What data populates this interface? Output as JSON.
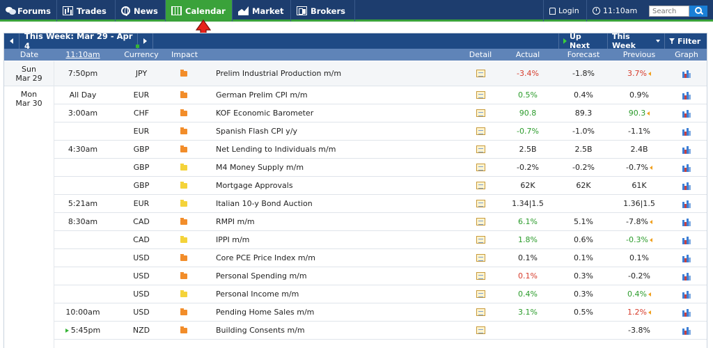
{
  "nav": {
    "items": [
      {
        "label": "Forums",
        "icon": "forums-icon"
      },
      {
        "label": "Trades",
        "icon": "trades-icon"
      },
      {
        "label": "News",
        "icon": "news-icon"
      },
      {
        "label": "Calendar",
        "icon": "calendar-icon",
        "active": true
      },
      {
        "label": "Market",
        "icon": "market-icon"
      },
      {
        "label": "Brokers",
        "icon": "brokers-icon"
      }
    ],
    "login": "Login",
    "clock": "11:10am",
    "search_placeholder": "Search"
  },
  "calendar": {
    "week_label": "This Week: Mar 29 - Apr 4",
    "up_next": "Up Next",
    "this_week": "This Week",
    "filter": "Filter",
    "columns": {
      "date": "Date",
      "time": "11:10am",
      "currency": "Currency",
      "impact": "Impact",
      "detail": "Detail",
      "actual": "Actual",
      "forecast": "Forecast",
      "previous": "Previous",
      "graph": "Graph"
    },
    "days": [
      {
        "weekday": "Sun",
        "date": "Mar 29"
      },
      {
        "weekday": "Mon",
        "date": "Mar 30"
      }
    ],
    "events": [
      {
        "time": "7:50pm",
        "currency": "JPY",
        "impact": "high",
        "event": "Prelim Industrial Production m/m",
        "actual": "-3.4%",
        "actual_tone": "down",
        "forecast": "-1.8%",
        "previous": "3.7%",
        "previous_tone": "down",
        "previous_revised": true
      },
      {
        "time": "All Day",
        "currency": "EUR",
        "impact": "high",
        "event": "German Prelim CPI m/m",
        "actual": "0.5%",
        "actual_tone": "up",
        "forecast": "0.4%",
        "previous": "0.9%",
        "previous_tone": "neutral",
        "previous_revised": false
      },
      {
        "time": "3:00am",
        "currency": "CHF",
        "impact": "high",
        "event": "KOF Economic Barometer",
        "actual": "90.8",
        "actual_tone": "up",
        "forecast": "89.3",
        "previous": "90.3",
        "previous_tone": "up",
        "previous_revised": true
      },
      {
        "time": "",
        "currency": "EUR",
        "impact": "high",
        "event": "Spanish Flash CPI y/y",
        "actual": "-0.7%",
        "actual_tone": "up",
        "forecast": "-1.0%",
        "previous": "-1.1%",
        "previous_tone": "neutral",
        "previous_revised": false
      },
      {
        "time": "4:30am",
        "currency": "GBP",
        "impact": "high",
        "event": "Net Lending to Individuals m/m",
        "actual": "2.5B",
        "actual_tone": "neutral",
        "forecast": "2.5B",
        "previous": "2.4B",
        "previous_tone": "neutral",
        "previous_revised": false
      },
      {
        "time": "",
        "currency": "GBP",
        "impact": "medium",
        "event": "M4 Money Supply m/m",
        "actual": "-0.2%",
        "actual_tone": "neutral",
        "forecast": "-0.2%",
        "previous": "-0.7%",
        "previous_tone": "neutral",
        "previous_revised": true
      },
      {
        "time": "",
        "currency": "GBP",
        "impact": "medium",
        "event": "Mortgage Approvals",
        "actual": "62K",
        "actual_tone": "neutral",
        "forecast": "62K",
        "previous": "61K",
        "previous_tone": "neutral",
        "previous_revised": false
      },
      {
        "time": "5:21am",
        "currency": "EUR",
        "impact": "medium",
        "event": "Italian 10-y Bond Auction",
        "actual": "1.34|1.5",
        "actual_tone": "neutral",
        "forecast": "",
        "previous": "1.36|1.5",
        "previous_tone": "neutral",
        "previous_revised": false
      },
      {
        "time": "8:30am",
        "currency": "CAD",
        "impact": "high",
        "event": "RMPI m/m",
        "actual": "6.1%",
        "actual_tone": "up",
        "forecast": "5.1%",
        "previous": "-7.8%",
        "previous_tone": "neutral",
        "previous_revised": true
      },
      {
        "time": "",
        "currency": "CAD",
        "impact": "medium",
        "event": "IPPI m/m",
        "actual": "1.8%",
        "actual_tone": "up",
        "forecast": "0.6%",
        "previous": "-0.3%",
        "previous_tone": "up",
        "previous_revised": true
      },
      {
        "time": "",
        "currency": "USD",
        "impact": "high",
        "event": "Core PCE Price Index m/m",
        "actual": "0.1%",
        "actual_tone": "neutral",
        "forecast": "0.1%",
        "previous": "0.1%",
        "previous_tone": "neutral",
        "previous_revised": false
      },
      {
        "time": "",
        "currency": "USD",
        "impact": "high",
        "event": "Personal Spending m/m",
        "actual": "0.1%",
        "actual_tone": "down",
        "forecast": "0.3%",
        "previous": "-0.2%",
        "previous_tone": "neutral",
        "previous_revised": false
      },
      {
        "time": "",
        "currency": "USD",
        "impact": "medium",
        "event": "Personal Income m/m",
        "actual": "0.4%",
        "actual_tone": "up",
        "forecast": "0.3%",
        "previous": "0.4%",
        "previous_tone": "up",
        "previous_revised": true
      },
      {
        "time": "10:00am",
        "currency": "USD",
        "impact": "high",
        "event": "Pending Home Sales m/m",
        "actual": "3.1%",
        "actual_tone": "up",
        "forecast": "0.5%",
        "previous": "1.2%",
        "previous_tone": "down",
        "previous_revised": true
      },
      {
        "time": "5:45pm",
        "currency": "NZD",
        "impact": "high",
        "event": "Building Consents m/m",
        "actual": "",
        "actual_tone": "neutral",
        "forecast": "",
        "previous": "-3.8%",
        "previous_tone": "neutral",
        "previous_revised": false,
        "upcoming": true
      }
    ],
    "colors": {
      "impact_high": "#f28d2a",
      "impact_medium": "#f4d33a",
      "better": "#2a9b2a",
      "worse": "#d63b2b",
      "nav_bg": "#1d3d6e",
      "nav_active": "#3aa23a"
    }
  }
}
